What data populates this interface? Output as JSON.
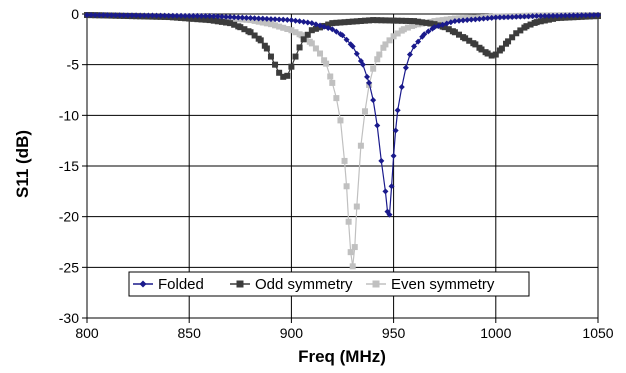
{
  "chart_data": {
    "type": "line",
    "title": "",
    "xlabel": "Freq (MHz)",
    "ylabel": "S11 (dB)",
    "xlim": [
      800,
      1050
    ],
    "ylim": [
      -30,
      0
    ],
    "x_ticks": [
      800,
      850,
      900,
      950,
      1000,
      1050
    ],
    "y_ticks": [
      0,
      -5,
      -10,
      -15,
      -20,
      -25,
      -30
    ],
    "grid": "major gridlines on both axes",
    "legend_position": "bottom-center inside plot",
    "series": [
      {
        "name": "Folded",
        "color": "#1a1a8c",
        "marker": "diamond",
        "x": [
          800,
          860,
          900,
          910,
          920,
          925,
          930,
          935,
          938,
          940,
          942,
          944,
          946,
          947,
          948,
          949,
          950,
          951,
          952,
          954,
          956,
          958,
          960,
          965,
          970,
          980,
          1000,
          1020,
          1050
        ],
        "y": [
          -0.1,
          -0.2,
          -0.6,
          -0.9,
          -1.5,
          -2.1,
          -3.2,
          -5.0,
          -6.8,
          -8.5,
          -11.0,
          -14.5,
          -17.5,
          -19.5,
          -19.8,
          -17.0,
          -14.0,
          -11.5,
          -9.5,
          -7.2,
          -5.3,
          -4.0,
          -3.2,
          -2.0,
          -1.3,
          -0.7,
          -0.35,
          -0.2,
          -0.1
        ]
      },
      {
        "name": "Odd symmetry",
        "color": "#3c3c3c",
        "marker": "square",
        "x": [
          800,
          840,
          860,
          870,
          875,
          880,
          885,
          888,
          890,
          892,
          894,
          896,
          898,
          900,
          902,
          904,
          906,
          910,
          920,
          940,
          960,
          970,
          975,
          980,
          985,
          990,
          993,
          996,
          998,
          1000,
          1003,
          1006,
          1010,
          1015,
          1020,
          1030,
          1050
        ],
        "y": [
          -0.1,
          -0.3,
          -0.6,
          -0.9,
          -1.3,
          -1.8,
          -2.6,
          -3.4,
          -4.2,
          -5.0,
          -5.8,
          -6.2,
          -6.1,
          -5.2,
          -4.2,
          -3.3,
          -2.5,
          -1.6,
          -0.9,
          -0.6,
          -0.7,
          -1.0,
          -1.3,
          -1.8,
          -2.4,
          -3.0,
          -3.5,
          -3.9,
          -4.1,
          -4.0,
          -3.4,
          -2.7,
          -1.9,
          -1.2,
          -0.8,
          -0.4,
          -0.2
        ]
      },
      {
        "name": "Even symmetry",
        "color": "#c0c0c0",
        "marker": "square",
        "x": [
          800,
          860,
          880,
          890,
          900,
          905,
          910,
          914,
          917,
          920,
          922,
          924,
          926,
          927,
          928,
          929,
          930,
          931,
          932,
          934,
          936,
          938,
          940,
          943,
          946,
          950,
          955,
          960,
          970,
          980,
          1000,
          1020,
          1050
        ],
        "y": [
          -0.1,
          -0.3,
          -0.6,
          -1.0,
          -1.6,
          -2.1,
          -2.9,
          -3.9,
          -4.9,
          -6.8,
          -8.3,
          -10.5,
          -14.5,
          -17.0,
          -20.5,
          -23.5,
          -24.9,
          -23.0,
          -19.0,
          -13.0,
          -9.6,
          -7.0,
          -5.4,
          -4.0,
          -3.0,
          -2.2,
          -1.5,
          -1.1,
          -0.7,
          -0.45,
          -0.25,
          -0.15,
          -0.1
        ]
      }
    ]
  }
}
